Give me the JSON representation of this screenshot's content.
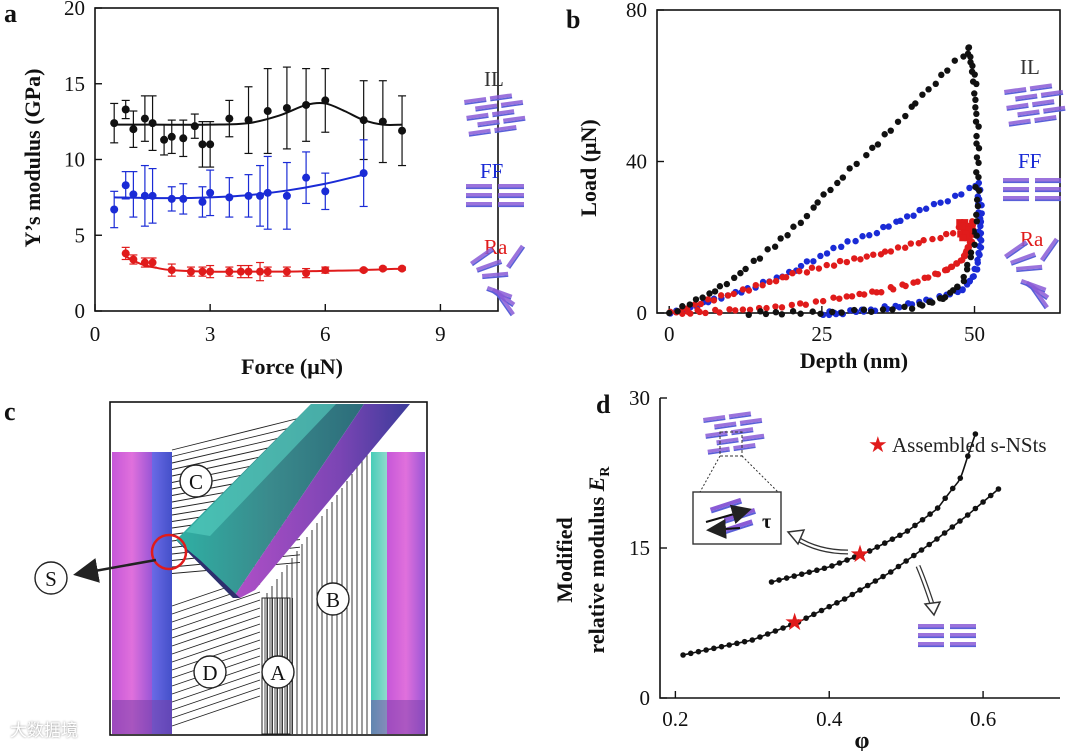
{
  "colors": {
    "black": "#111111",
    "blue": "#1a2bd6",
    "red": "#e01b1b",
    "purple": "#8a5bd6",
    "magenta": "#d75ad8",
    "teal": "#3fc9b6",
    "slate": "#5a5fd8"
  },
  "watermark": "大数据境",
  "panel_c": {
    "label": "c",
    "regions": [
      "C",
      "B",
      "D",
      "A"
    ],
    "s_label": "S"
  },
  "chart_data": [
    {
      "id": "a",
      "type": "line",
      "panel_label": "a",
      "xlabel": "Force (μN)",
      "ylabel": "Y’s modulus (GPa)",
      "xlim": [
        0,
        10.5
      ],
      "ylim": [
        0,
        20
      ],
      "xticks": [
        "0",
        "3",
        "6",
        "9"
      ],
      "xtick_values": [
        0,
        3,
        6,
        9
      ],
      "yticks": [
        "0",
        "5",
        "10",
        "15",
        "20"
      ],
      "ytick_values": [
        0,
        5,
        10,
        15,
        20
      ],
      "series": [
        {
          "name": "IL",
          "color": "black",
          "x": [
            0.5,
            0.8,
            1.0,
            1.3,
            1.5,
            1.8,
            2.0,
            2.3,
            2.6,
            2.8,
            3.0,
            3.5,
            4.0,
            4.5,
            5.0,
            5.5,
            6.0,
            7.0,
            7.5,
            8.0
          ],
          "y": [
            12.4,
            13.3,
            12.0,
            12.7,
            12.4,
            11.3,
            11.5,
            11.4,
            12.2,
            11.0,
            11.0,
            12.7,
            12.6,
            13.2,
            13.4,
            13.6,
            13.9,
            12.6,
            12.5,
            11.9
          ],
          "err": [
            1.3,
            0.6,
            1.2,
            1.5,
            1.8,
            1.0,
            1.1,
            1.2,
            0.8,
            1.5,
            1.5,
            1.2,
            2.2,
            2.8,
            2.7,
            2.4,
            2.1,
            2.6,
            2.7,
            2.3
          ],
          "fit_x": [
            0.5,
            1.5,
            3.0,
            4.0,
            4.8,
            5.5,
            6.0,
            6.5,
            7.0,
            7.5,
            8.0
          ],
          "fit_y": [
            12.3,
            12.3,
            12.3,
            12.4,
            12.9,
            13.6,
            13.7,
            13.2,
            12.6,
            12.3,
            12.3
          ]
        },
        {
          "name": "FF",
          "color": "blue",
          "x": [
            0.5,
            0.8,
            1.0,
            1.3,
            1.5,
            2.0,
            2.3,
            2.8,
            3.0,
            3.5,
            4.0,
            4.3,
            4.5,
            5.0,
            5.5,
            6.0,
            7.0
          ],
          "y": [
            6.7,
            8.3,
            7.7,
            7.6,
            7.6,
            7.4,
            7.4,
            7.2,
            7.8,
            7.5,
            7.6,
            7.6,
            7.8,
            7.6,
            8.8,
            7.9,
            9.1
          ],
          "err": [
            1.2,
            0.9,
            1.5,
            2.0,
            1.8,
            0.8,
            1.0,
            1.0,
            1.5,
            1.3,
            1.4,
            2.0,
            2.4,
            2.2,
            1.7,
            1.2,
            2.2
          ],
          "fit_x": [
            0.5,
            2.0,
            3.0,
            4.0,
            5.0,
            6.0,
            7.0
          ],
          "fit_y": [
            7.5,
            7.45,
            7.5,
            7.65,
            7.95,
            8.4,
            9.0
          ]
        },
        {
          "name": "Ra",
          "color": "red",
          "x": [
            0.8,
            1.0,
            1.3,
            1.5,
            2.0,
            2.5,
            2.8,
            3.0,
            3.5,
            3.8,
            4.0,
            4.3,
            4.5,
            5.0,
            5.5,
            6.0,
            7.0,
            7.5,
            8.0
          ],
          "y": [
            3.8,
            3.4,
            3.2,
            3.2,
            2.7,
            2.6,
            2.6,
            2.6,
            2.6,
            2.6,
            2.6,
            2.6,
            2.6,
            2.6,
            2.5,
            2.7,
            2.7,
            2.8,
            2.8
          ],
          "err": [
            0.4,
            0.3,
            0.3,
            0.3,
            0.4,
            0.3,
            0.3,
            0.4,
            0.3,
            0.4,
            0.4,
            0.6,
            0.3,
            0.3,
            0.3,
            0.2,
            0.1,
            0.1,
            0.1
          ],
          "fit_x": [
            0.8,
            1.2,
            1.6,
            2.0,
            3.0,
            4.0,
            5.0,
            6.0,
            7.0,
            8.0
          ],
          "fit_y": [
            3.6,
            3.1,
            2.85,
            2.7,
            2.6,
            2.6,
            2.6,
            2.65,
            2.7,
            2.8
          ]
        }
      ],
      "legend_labels": [
        "IL",
        "FF",
        "Ra"
      ]
    },
    {
      "id": "b",
      "type": "scatter",
      "panel_label": "b",
      "xlabel": "Depth (nm)",
      "ylabel": "Load (μN)",
      "xlim": [
        -2,
        64
      ],
      "ylim": [
        0,
        80
      ],
      "xticks": [
        "0",
        "25",
        "50"
      ],
      "xtick_values": [
        0,
        25,
        50
      ],
      "yticks": [
        "0",
        "40",
        "80"
      ],
      "ytick_values": [
        0,
        40,
        80
      ],
      "series": [
        {
          "name": "IL",
          "color": "black",
          "load_x": [
            0,
            10,
            20,
            30,
            40,
            45,
            49
          ],
          "load_y": [
            0,
            8,
            22,
            38,
            55,
            63,
            70
          ],
          "unload_x": [
            49,
            50,
            50.5,
            50.5,
            50,
            48,
            45,
            40,
            30,
            20,
            12
          ],
          "unload_y": [
            70,
            60,
            45,
            30,
            18,
            8,
            4,
            1.5,
            0.3,
            0,
            0
          ]
        },
        {
          "name": "FF",
          "color": "blue",
          "load_x": [
            0,
            10,
            20,
            30,
            40,
            46,
            50
          ],
          "load_y": [
            0,
            4.5,
            11,
            19,
            26,
            30,
            34
          ],
          "unload_x": [
            50.5,
            51,
            51,
            50,
            48,
            44,
            38,
            32,
            28,
            25
          ],
          "unload_y": [
            34,
            26,
            18,
            10,
            6,
            4,
            2,
            0.6,
            0,
            0
          ]
        },
        {
          "name": "Ra",
          "color": "red",
          "load_x": [
            0,
            10,
            20,
            30,
            40,
            46,
            49.5
          ],
          "load_y": [
            0,
            5,
            10,
            14,
            18,
            21,
            24
          ],
          "unload_x": [
            49.5,
            49.5,
            48,
            45,
            40,
            34,
            28,
            20,
            12,
            5,
            1
          ],
          "unload_y": [
            24,
            19,
            14,
            11,
            8,
            5.5,
            4,
            2,
            0.8,
            0.3,
            0
          ]
        }
      ],
      "legend_labels": [
        "IL",
        "FF",
        "Ra"
      ]
    },
    {
      "id": "d",
      "type": "line",
      "panel_label": "d",
      "xlabel": "φ",
      "ylabel_line1": "Modified",
      "ylabel_line2": "relative modulus ",
      "ylabel_symbol": "E",
      "ylabel_sub": "R",
      "xlim": [
        0.18,
        0.7
      ],
      "ylim": [
        0,
        30
      ],
      "xticks": [
        "0.2",
        "0.4",
        "0.6"
      ],
      "xtick_values": [
        0.2,
        0.4,
        0.6
      ],
      "yticks": [
        "0",
        "15",
        "30"
      ],
      "ytick_values": [
        0,
        15,
        30
      ],
      "legend_label": "Assembled s-NSts",
      "inset_label": "τ",
      "series": [
        {
          "name": "upper",
          "x_start": 0.325,
          "x_end": 0.59,
          "points": 28,
          "ctrl_x": [
            0.325,
            0.4,
            0.45,
            0.5,
            0.54,
            0.57,
            0.59
          ],
          "ctrl_y": [
            11.6,
            13.1,
            14.6,
            16.6,
            18.9,
            21.9,
            26.4
          ]
        },
        {
          "name": "lower",
          "x_start": 0.21,
          "x_end": 0.62,
          "points": 42,
          "ctrl_x": [
            0.21,
            0.3,
            0.36,
            0.42,
            0.48,
            0.54,
            0.58,
            0.62
          ],
          "ctrl_y": [
            4.3,
            5.8,
            7.6,
            9.9,
            12.6,
            15.9,
            18.3,
            20.9
          ]
        }
      ],
      "stars": [
        {
          "x": 0.44,
          "y": 14.4
        },
        {
          "x": 0.355,
          "y": 7.6
        }
      ]
    }
  ]
}
